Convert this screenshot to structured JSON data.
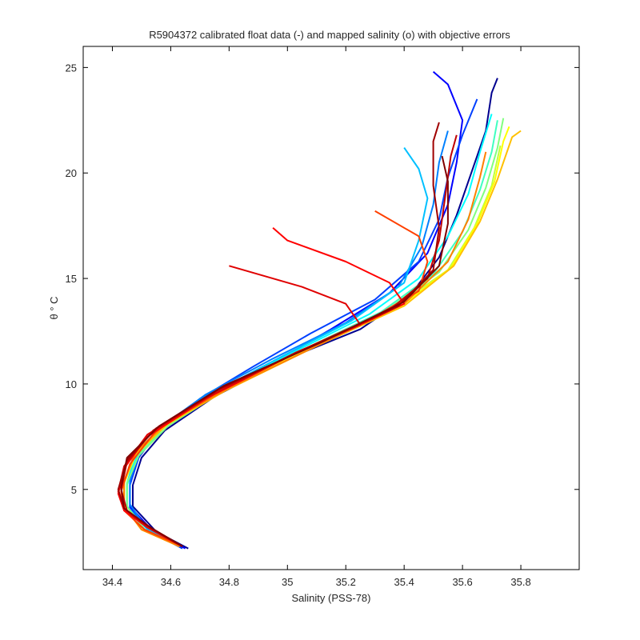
{
  "chart_data": {
    "type": "line",
    "title": "R5904372 calibrated float data (-) and mapped salinity (o) with objective errors",
    "xlabel": "Salinity (PSS-78)",
    "ylabel": "θ ° C",
    "xlim": [
      34.3,
      36.0
    ],
    "ylim": [
      1.2,
      26.0
    ],
    "xticks": [
      34.4,
      34.6,
      34.8,
      35,
      35.2,
      35.4,
      35.6,
      35.8
    ],
    "xtick_labels": [
      "34.4",
      "34.6",
      "34.8",
      "35",
      "35.2",
      "35.4",
      "35.6",
      "35.8"
    ],
    "yticks": [
      5,
      10,
      15,
      20,
      25
    ],
    "ytick_labels": [
      "5",
      "10",
      "15",
      "20",
      "25"
    ],
    "grid": false,
    "colormap": [
      "#00008f",
      "#0000ff",
      "#0080ff",
      "#00ffff",
      "#80ff80",
      "#ffff00",
      "#ff8000",
      "#ff0000",
      "#800000"
    ],
    "series": [
      {
        "color": "#00008f",
        "points": [
          [
            34.66,
            2.2
          ],
          [
            34.55,
            3.0
          ],
          [
            34.47,
            4.2
          ],
          [
            34.47,
            5.2
          ],
          [
            34.5,
            6.5
          ],
          [
            34.58,
            7.8
          ],
          [
            34.75,
            9.4
          ],
          [
            35.0,
            11.2
          ],
          [
            35.25,
            12.6
          ],
          [
            35.42,
            14.2
          ],
          [
            35.52,
            16.0
          ],
          [
            35.58,
            18.0
          ],
          [
            35.63,
            20.0
          ],
          [
            35.68,
            22.0
          ],
          [
            35.7,
            23.8
          ],
          [
            35.72,
            24.5
          ]
        ]
      },
      {
        "color": "#0000ff",
        "points": [
          [
            34.65,
            2.2
          ],
          [
            34.54,
            3.0
          ],
          [
            34.46,
            4.2
          ],
          [
            34.46,
            5.3
          ],
          [
            34.49,
            6.6
          ],
          [
            34.57,
            7.9
          ],
          [
            34.73,
            9.5
          ],
          [
            34.95,
            11.0
          ],
          [
            35.15,
            12.6
          ],
          [
            35.35,
            14.3
          ],
          [
            35.48,
            16.2
          ],
          [
            35.55,
            18.5
          ],
          [
            35.58,
            20.5
          ],
          [
            35.6,
            22.5
          ],
          [
            35.55,
            24.2
          ],
          [
            35.5,
            24.8
          ]
        ]
      },
      {
        "color": "#0040ff",
        "points": [
          [
            34.64,
            2.2
          ],
          [
            34.53,
            3.0
          ],
          [
            34.46,
            4.1
          ],
          [
            34.46,
            5.2
          ],
          [
            34.49,
            6.5
          ],
          [
            34.56,
            7.8
          ],
          [
            34.7,
            9.3
          ],
          [
            34.88,
            10.8
          ],
          [
            35.08,
            12.4
          ],
          [
            35.3,
            14.0
          ],
          [
            35.45,
            15.8
          ],
          [
            35.52,
            17.8
          ],
          [
            35.55,
            19.8
          ],
          [
            35.6,
            21.8
          ],
          [
            35.65,
            23.5
          ]
        ]
      },
      {
        "color": "#0080ff",
        "points": [
          [
            34.64,
            2.3
          ],
          [
            34.52,
            3.1
          ],
          [
            34.46,
            4.3
          ],
          [
            34.46,
            5.4
          ],
          [
            34.49,
            6.7
          ],
          [
            34.57,
            8.0
          ],
          [
            34.72,
            9.5
          ],
          [
            34.95,
            11.2
          ],
          [
            35.2,
            12.9
          ],
          [
            35.38,
            14.6
          ],
          [
            35.46,
            16.5
          ],
          [
            35.5,
            18.5
          ],
          [
            35.52,
            20.5
          ],
          [
            35.55,
            22.0
          ]
        ]
      },
      {
        "color": "#00c0ff",
        "points": [
          [
            34.63,
            2.3
          ],
          [
            34.52,
            3.1
          ],
          [
            34.45,
            4.2
          ],
          [
            34.45,
            5.3
          ],
          [
            34.48,
            6.6
          ],
          [
            34.56,
            7.9
          ],
          [
            34.72,
            9.4
          ],
          [
            34.98,
            11.3
          ],
          [
            35.22,
            13.0
          ],
          [
            35.4,
            14.8
          ],
          [
            35.45,
            16.8
          ],
          [
            35.48,
            18.8
          ],
          [
            35.45,
            20.2
          ],
          [
            35.4,
            21.2
          ]
        ]
      },
      {
        "color": "#00ffff",
        "points": [
          [
            34.63,
            2.3
          ],
          [
            34.51,
            3.1
          ],
          [
            34.45,
            4.2
          ],
          [
            34.45,
            5.2
          ],
          [
            34.48,
            6.5
          ],
          [
            34.57,
            7.9
          ],
          [
            34.74,
            9.5
          ],
          [
            35.02,
            11.5
          ],
          [
            35.28,
            13.3
          ],
          [
            35.45,
            15.0
          ],
          [
            35.55,
            17.0
          ],
          [
            35.62,
            19.0
          ],
          [
            35.66,
            21.0
          ],
          [
            35.7,
            22.8
          ]
        ]
      },
      {
        "color": "#40ffc0",
        "points": [
          [
            34.63,
            2.3
          ],
          [
            34.51,
            3.1
          ],
          [
            34.45,
            4.2
          ],
          [
            34.45,
            5.3
          ],
          [
            34.49,
            6.6
          ],
          [
            34.58,
            8.0
          ],
          [
            34.76,
            9.6
          ],
          [
            35.05,
            11.6
          ],
          [
            35.32,
            13.4
          ],
          [
            35.5,
            15.2
          ],
          [
            35.6,
            17.2
          ],
          [
            35.66,
            19.2
          ],
          [
            35.7,
            21.0
          ],
          [
            35.72,
            22.5
          ]
        ]
      },
      {
        "color": "#80ff80",
        "points": [
          [
            34.63,
            2.3
          ],
          [
            34.51,
            3.1
          ],
          [
            34.45,
            4.2
          ],
          [
            34.45,
            5.3
          ],
          [
            34.49,
            6.6
          ],
          [
            34.59,
            8.0
          ],
          [
            34.77,
            9.6
          ],
          [
            35.05,
            11.6
          ],
          [
            35.33,
            13.4
          ],
          [
            35.52,
            15.3
          ],
          [
            35.62,
            17.3
          ],
          [
            35.68,
            19.3
          ],
          [
            35.72,
            21.2
          ],
          [
            35.74,
            22.6
          ]
        ]
      },
      {
        "color": "#c0ff40",
        "points": [
          [
            34.63,
            2.3
          ],
          [
            34.5,
            3.1
          ],
          [
            34.44,
            4.2
          ],
          [
            34.44,
            5.3
          ],
          [
            34.48,
            6.6
          ],
          [
            34.58,
            8.0
          ],
          [
            34.77,
            9.6
          ],
          [
            35.06,
            11.6
          ],
          [
            35.35,
            13.5
          ],
          [
            35.55,
            15.4
          ],
          [
            35.64,
            17.4
          ],
          [
            35.7,
            19.4
          ],
          [
            35.73,
            21.3
          ]
        ]
      },
      {
        "color": "#ffff00",
        "points": [
          [
            34.63,
            2.3
          ],
          [
            34.5,
            3.1
          ],
          [
            34.44,
            4.2
          ],
          [
            34.44,
            5.3
          ],
          [
            34.48,
            6.7
          ],
          [
            34.58,
            8.1
          ],
          [
            34.78,
            9.7
          ],
          [
            35.08,
            11.7
          ],
          [
            35.38,
            13.6
          ],
          [
            35.56,
            15.5
          ],
          [
            35.65,
            17.6
          ],
          [
            35.71,
            19.6
          ],
          [
            35.74,
            21.5
          ],
          [
            35.76,
            22.2
          ]
        ]
      },
      {
        "color": "#ffc000",
        "points": [
          [
            34.63,
            2.3
          ],
          [
            34.5,
            3.1
          ],
          [
            34.44,
            4.2
          ],
          [
            34.44,
            5.4
          ],
          [
            34.48,
            6.7
          ],
          [
            34.59,
            8.1
          ],
          [
            34.79,
            9.7
          ],
          [
            35.1,
            11.8
          ],
          [
            35.4,
            13.7
          ],
          [
            35.57,
            15.6
          ],
          [
            35.66,
            17.7
          ],
          [
            35.72,
            19.7
          ],
          [
            35.77,
            21.7
          ],
          [
            35.8,
            22.0
          ]
        ]
      },
      {
        "color": "#ff8000",
        "points": [
          [
            34.63,
            2.3
          ],
          [
            34.5,
            3.1
          ],
          [
            34.44,
            4.2
          ],
          [
            34.44,
            5.4
          ],
          [
            34.48,
            6.8
          ],
          [
            34.59,
            8.2
          ],
          [
            34.8,
            9.8
          ],
          [
            35.1,
            11.8
          ],
          [
            35.4,
            13.8
          ],
          [
            35.55,
            15.8
          ],
          [
            35.62,
            17.8
          ],
          [
            35.66,
            19.8
          ],
          [
            35.68,
            21.0
          ]
        ]
      },
      {
        "color": "#ff4000",
        "points": [
          [
            34.64,
            2.3
          ],
          [
            34.51,
            3.1
          ],
          [
            34.44,
            4.0
          ],
          [
            34.43,
            4.9
          ],
          [
            34.46,
            6.2
          ],
          [
            34.55,
            7.8
          ],
          [
            34.76,
            9.6
          ],
          [
            35.05,
            11.6
          ],
          [
            35.3,
            13.2
          ],
          [
            35.45,
            14.4
          ],
          [
            35.48,
            15.8
          ],
          [
            35.45,
            17.0
          ],
          [
            35.3,
            18.2
          ]
        ]
      },
      {
        "color": "#ff0000",
        "points": [
          [
            34.64,
            2.3
          ],
          [
            34.52,
            3.2
          ],
          [
            34.44,
            4.0
          ],
          [
            34.42,
            4.8
          ],
          [
            34.44,
            6.0
          ],
          [
            34.52,
            7.5
          ],
          [
            34.72,
            9.3
          ],
          [
            35.02,
            11.4
          ],
          [
            35.28,
            13.0
          ],
          [
            35.4,
            13.8
          ],
          [
            35.35,
            14.8
          ],
          [
            35.2,
            15.8
          ],
          [
            35.0,
            16.8
          ],
          [
            34.95,
            17.4
          ]
        ]
      },
      {
        "color": "#e00000",
        "points": [
          [
            34.64,
            2.3
          ],
          [
            34.52,
            3.2
          ],
          [
            34.44,
            4.1
          ],
          [
            34.42,
            4.9
          ],
          [
            34.44,
            6.1
          ],
          [
            34.52,
            7.6
          ],
          [
            34.73,
            9.4
          ],
          [
            35.03,
            11.5
          ],
          [
            35.25,
            12.8
          ],
          [
            35.2,
            13.8
          ],
          [
            35.05,
            14.6
          ],
          [
            34.9,
            15.2
          ],
          [
            34.8,
            15.6
          ]
        ]
      },
      {
        "color": "#c00000",
        "points": [
          [
            34.64,
            2.3
          ],
          [
            34.53,
            3.2
          ],
          [
            34.45,
            4.0
          ],
          [
            34.43,
            5.0
          ],
          [
            34.45,
            6.3
          ],
          [
            34.54,
            7.8
          ],
          [
            34.76,
            9.7
          ],
          [
            35.08,
            11.8
          ],
          [
            35.35,
            13.5
          ],
          [
            35.48,
            15.0
          ],
          [
            35.52,
            16.8
          ],
          [
            35.54,
            18.8
          ],
          [
            35.56,
            20.8
          ],
          [
            35.58,
            21.8
          ]
        ]
      },
      {
        "color": "#a00000",
        "points": [
          [
            34.64,
            2.3
          ],
          [
            34.53,
            3.2
          ],
          [
            34.44,
            4.1
          ],
          [
            34.42,
            5.0
          ],
          [
            34.45,
            6.4
          ],
          [
            34.55,
            7.9
          ],
          [
            34.77,
            9.8
          ],
          [
            35.1,
            11.9
          ],
          [
            35.38,
            13.7
          ],
          [
            35.5,
            15.4
          ],
          [
            35.52,
            17.4
          ],
          [
            35.5,
            19.4
          ],
          [
            35.5,
            21.5
          ],
          [
            35.52,
            22.4
          ]
        ]
      },
      {
        "color": "#800000",
        "points": [
          [
            34.64,
            2.3
          ],
          [
            34.53,
            3.2
          ],
          [
            34.44,
            4.1
          ],
          [
            34.43,
            5.1
          ],
          [
            34.45,
            6.5
          ],
          [
            34.56,
            8.0
          ],
          [
            34.78,
            9.9
          ],
          [
            35.12,
            12.0
          ],
          [
            35.4,
            13.9
          ],
          [
            35.52,
            15.6
          ],
          [
            35.55,
            17.6
          ],
          [
            35.55,
            19.6
          ],
          [
            35.53,
            20.8
          ]
        ]
      }
    ]
  }
}
